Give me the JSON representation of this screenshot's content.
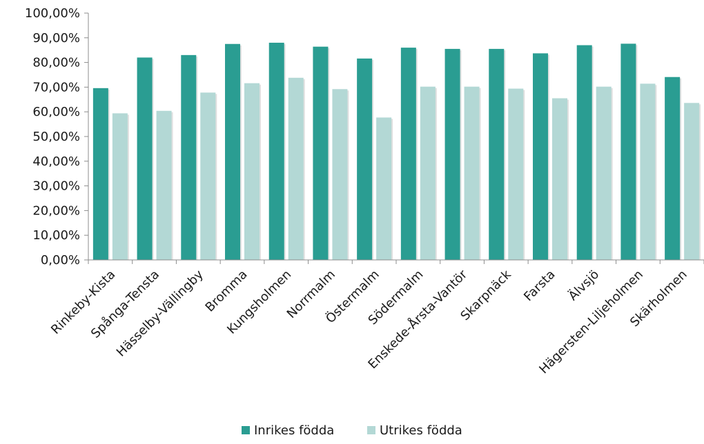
{
  "chart_data": {
    "type": "bar",
    "categories": [
      "Rinkeby-Kista",
      "Spånga-Tensta",
      "Hässelby-Vällingby",
      "Bromma",
      "Kungsholmen",
      "Norrmalm",
      "Östermalm",
      "Södermalm",
      "Enskede-Årsta-Vantör",
      "Skarpnäck",
      "Farsta",
      "Älvsjö",
      "Hägersten-Liljeholmen",
      "Skärholmen"
    ],
    "series": [
      {
        "name": "Inrikes födda",
        "color": "#2a9d92",
        "values": [
          69.6,
          82.0,
          83.0,
          87.5,
          88.0,
          86.4,
          81.6,
          86.0,
          85.5,
          85.5,
          83.7,
          87.0,
          87.6,
          74.1
        ]
      },
      {
        "name": "Utrikes födda",
        "color": "#b3d8d5",
        "values": [
          59.4,
          60.4,
          67.8,
          71.6,
          73.8,
          69.2,
          57.7,
          70.2,
          70.2,
          69.4,
          65.5,
          70.2,
          71.4,
          63.6
        ]
      }
    ],
    "yticks": [
      "0,00%",
      "10,00%",
      "20,00%",
      "30,00%",
      "40,00%",
      "50,00%",
      "60,00%",
      "70,00%",
      "80,00%",
      "90,00%",
      "100,00%"
    ],
    "ylim": [
      0,
      100
    ],
    "title": "",
    "xlabel": "",
    "ylabel": "",
    "grid": false,
    "legend": "bottom-center"
  }
}
